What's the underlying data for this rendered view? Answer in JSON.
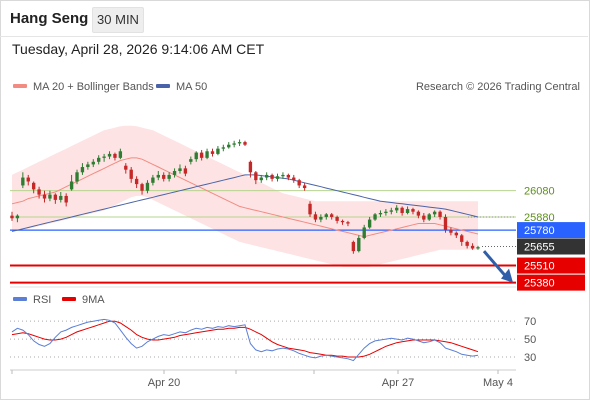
{
  "header": {
    "title": "Hang Seng",
    "timeframe": "30 MIN",
    "datetime": "Tuesday, April 28, 2026 9:14:06 AM CET"
  },
  "legend": {
    "ma20_label": "MA 20 + Bollinger Bands",
    "ma50_label": "MA 50",
    "credit": "Research © 2026 Trading Central",
    "rsi_label": "RSI",
    "rsi_ma_label": "9MA"
  },
  "colors": {
    "bull": "#2e7d32",
    "bear": "#c62828",
    "ma20": "#f28b82",
    "ma50": "#4a63a8",
    "band_fill": "#fde3e3",
    "green_level": "#b6d48e",
    "blue_level": "#2962ff",
    "red_level": "#e60000",
    "current": "#333333",
    "target_arrow": "#2f5fa8",
    "rsi": "#5b7fd6",
    "rsi_ma": "#e60000"
  },
  "chart_data": {
    "type": "candlestick",
    "x_ticks": [
      "Apr 20",
      "Apr 27",
      "May 4"
    ],
    "levels": [
      {
        "value": 26080,
        "label": "26080",
        "style": "green-text"
      },
      {
        "value": 25880,
        "label": "25880",
        "style": "green-text"
      },
      {
        "value": 25780,
        "label": "25780",
        "style": "blue-box"
      },
      {
        "value": 25655,
        "label": "25655",
        "style": "dark-box"
      },
      {
        "value": 25510,
        "label": "25510",
        "style": "red-box"
      },
      {
        "value": 25380,
        "label": "25380",
        "style": "red-box"
      }
    ],
    "ylim": [
      25400,
      26740
    ],
    "candles": [
      [
        25890,
        25870,
        25850,
        25920
      ],
      [
        25870,
        25890,
        25840,
        25900
      ],
      [
        26120,
        26180,
        26100,
        26220
      ],
      [
        26180,
        26150,
        26120,
        26200
      ],
      [
        26140,
        26090,
        26060,
        26150
      ],
      [
        26090,
        26050,
        26020,
        26110
      ],
      [
        26050,
        26020,
        25990,
        26080
      ],
      [
        26020,
        26050,
        26000,
        26080
      ],
      [
        26050,
        26010,
        25980,
        26060
      ],
      [
        26010,
        26040,
        25990,
        26070
      ],
      [
        26040,
        25990,
        25960,
        26060
      ],
      [
        26090,
        26150,
        26080,
        26200
      ],
      [
        26150,
        26220,
        26130,
        26240
      ],
      [
        26220,
        26260,
        26200,
        26290
      ],
      [
        26260,
        26280,
        26240,
        26300
      ],
      [
        26280,
        26300,
        26260,
        26320
      ],
      [
        26300,
        26330,
        26280,
        26350
      ],
      [
        26330,
        26340,
        26300,
        26360
      ],
      [
        26340,
        26360,
        26320,
        26380
      ],
      [
        26360,
        26330,
        26310,
        26370
      ],
      [
        26330,
        26380,
        26320,
        26400
      ],
      [
        26270,
        26240,
        26210,
        26290
      ],
      [
        26240,
        26170,
        26140,
        26260
      ],
      [
        26170,
        26130,
        26100,
        26190
      ],
      [
        26130,
        26080,
        26050,
        26140
      ],
      [
        26080,
        26140,
        26060,
        26160
      ],
      [
        26140,
        26180,
        26120,
        26200
      ],
      [
        26180,
        26200,
        26160,
        26230
      ],
      [
        26200,
        26170,
        26150,
        26220
      ],
      [
        26170,
        26200,
        26150,
        26220
      ],
      [
        26200,
        26230,
        26180,
        26250
      ],
      [
        26230,
        26250,
        26210,
        26280
      ],
      [
        26250,
        26210,
        26190,
        26270
      ],
      [
        26300,
        26320,
        26280,
        26340
      ],
      [
        26320,
        26370,
        26300,
        26380
      ],
      [
        26370,
        26330,
        26310,
        26390
      ],
      [
        26330,
        26380,
        26320,
        26400
      ],
      [
        26380,
        26360,
        26340,
        26400
      ],
      [
        26360,
        26400,
        26350,
        26420
      ],
      [
        26400,
        26410,
        26380,
        26430
      ],
      [
        26410,
        26430,
        26400,
        26450
      ],
      [
        26430,
        26440,
        26410,
        26460
      ],
      [
        26440,
        26450,
        26420,
        26470
      ],
      [
        26450,
        26430,
        26420,
        26460
      ],
      [
        26300,
        26220,
        26180,
        26310
      ],
      [
        26220,
        26160,
        26130,
        26230
      ],
      [
        26160,
        26180,
        26140,
        26200
      ],
      [
        26180,
        26200,
        26160,
        26220
      ],
      [
        26200,
        26170,
        26150,
        26210
      ],
      [
        26170,
        26190,
        26150,
        26210
      ],
      [
        26190,
        26200,
        26170,
        26220
      ],
      [
        26200,
        26180,
        26160,
        26210
      ],
      [
        26180,
        26160,
        26140,
        26200
      ],
      [
        26160,
        26120,
        26100,
        26170
      ],
      [
        26120,
        26100,
        26080,
        26140
      ],
      [
        25980,
        25900,
        25880,
        26000
      ],
      [
        25900,
        25860,
        25840,
        25920
      ],
      [
        25860,
        25880,
        25840,
        25900
      ],
      [
        25880,
        25900,
        25860,
        25910
      ],
      [
        25900,
        25880,
        25860,
        25910
      ],
      [
        25880,
        25850,
        25830,
        25890
      ],
      [
        25850,
        25840,
        25820,
        25860
      ],
      [
        25840,
        25830,
        25810,
        25850
      ],
      [
        25690,
        25620,
        25600,
        25700
      ],
      [
        25620,
        25720,
        25610,
        25740
      ],
      [
        25720,
        25800,
        25710,
        25820
      ],
      [
        25800,
        25860,
        25790,
        25880
      ],
      [
        25860,
        25900,
        25850,
        25910
      ],
      [
        25900,
        25910,
        25880,
        25930
      ],
      [
        25910,
        25920,
        25890,
        25940
      ],
      [
        25920,
        25930,
        25900,
        25950
      ],
      [
        25930,
        25950,
        25910,
        25970
      ],
      [
        25950,
        25910,
        25890,
        25960
      ],
      [
        25910,
        25940,
        25900,
        25960
      ],
      [
        25940,
        25920,
        25900,
        25950
      ],
      [
        25920,
        25890,
        25870,
        25930
      ],
      [
        25890,
        25860,
        25840,
        25910
      ],
      [
        25860,
        25900,
        25850,
        25910
      ],
      [
        25900,
        25920,
        25880,
        25930
      ],
      [
        25920,
        25880,
        25860,
        25930
      ],
      [
        25880,
        25780,
        25760,
        25900
      ],
      [
        25780,
        25760,
        25740,
        25800
      ],
      [
        25760,
        25740,
        25720,
        25770
      ],
      [
        25740,
        25690,
        25660,
        25750
      ],
      [
        25690,
        25660,
        25640,
        25700
      ],
      [
        25660,
        25640,
        25630,
        25680
      ],
      [
        25640,
        25650,
        25630,
        25660
      ]
    ],
    "ma20": [
      25980,
      25990,
      26000,
      26020,
      26030,
      26040,
      26050,
      26060,
      26070,
      26090,
      26110,
      26130,
      26150,
      26170,
      26190,
      26210,
      26230,
      26250,
      26270,
      26290,
      26310,
      26320,
      26330,
      26330,
      26320,
      26300,
      26280,
      26260,
      26240,
      26220,
      26200,
      26180,
      26160,
      26140,
      26120,
      26100,
      26080,
      26060,
      26040,
      26020,
      26000,
      25980,
      25960,
      25950,
      25940,
      25930,
      25920,
      25910,
      25900,
      25890,
      25880,
      25870,
      25860,
      25850,
      25840,
      25830,
      25820,
      25810,
      25800,
      25790,
      25780,
      25770,
      25760,
      25750,
      25740,
      25730,
      25740,
      25750,
      25760,
      25770,
      25780,
      25790,
      25800,
      25810,
      25820,
      25830,
      25830,
      25830,
      25830,
      25820,
      25810,
      25800,
      25790,
      25780,
      25770,
      25760,
      25750
    ],
    "band_upper": [
      26200,
      26220,
      26240,
      26260,
      26280,
      26300,
      26320,
      26340,
      26360,
      26380,
      26400,
      26420,
      26440,
      26460,
      26480,
      26500,
      26520,
      26540,
      26550,
      26560,
      26570,
      26575,
      26575,
      26570,
      26560,
      26550,
      26540,
      26520,
      26500,
      26480,
      26460,
      26440,
      26420,
      26400,
      26380,
      26360,
      26340,
      26320,
      26300,
      26280,
      26260,
      26240,
      26220,
      26200,
      26180,
      26160,
      26140,
      26120,
      26100,
      26080,
      26060,
      26050,
      26040,
      26030,
      26020,
      26010,
      26000,
      26000,
      26000,
      26000,
      26000,
      26000,
      26000,
      26000,
      26000,
      26000,
      26000,
      26000,
      26000,
      26000,
      26000,
      26000,
      26000,
      26000,
      26000,
      26000,
      26000,
      26000,
      26000,
      26000,
      26000,
      26000,
      26000,
      26000,
      26000,
      26000,
      26000
    ],
    "band_lower": [
      25780,
      25780,
      25780,
      25790,
      25800,
      25810,
      25820,
      25830,
      25840,
      25850,
      25860,
      25870,
      25880,
      25890,
      25900,
      25910,
      25920,
      25930,
      25950,
      25970,
      25990,
      26010,
      26030,
      26040,
      26040,
      26030,
      26010,
      25990,
      25970,
      25950,
      25930,
      25910,
      25890,
      25870,
      25850,
      25830,
      25810,
      25790,
      25770,
      25750,
      25730,
      25710,
      25690,
      25680,
      25670,
      25660,
      25650,
      25640,
      25630,
      25620,
      25610,
      25600,
      25590,
      25580,
      25570,
      25560,
      25550,
      25540,
      25530,
      25520,
      25510,
      25500,
      25500,
      25500,
      25500,
      25500,
      25500,
      25510,
      25520,
      25530,
      25540,
      25550,
      25560,
      25570,
      25580,
      25590,
      25600,
      25610,
      25620,
      25630,
      25630,
      25630,
      25630,
      25630,
      25630,
      25630,
      25630
    ],
    "ma50": [
      25770,
      25780,
      25790,
      25800,
      25810,
      25820,
      25830,
      25840,
      25850,
      25860,
      25870,
      25880,
      25890,
      25900,
      25910,
      25920,
      25930,
      25940,
      25950,
      25960,
      25970,
      25980,
      25990,
      26000,
      26010,
      26020,
      26030,
      26040,
      26050,
      26060,
      26070,
      26080,
      26090,
      26100,
      26110,
      26120,
      26130,
      26140,
      26150,
      26160,
      26170,
      26180,
      26190,
      26200,
      26200,
      26200,
      26195,
      26190,
      26185,
      26180,
      26175,
      26170,
      26160,
      26150,
      26140,
      26130,
      26120,
      26110,
      26100,
      26090,
      26080,
      26070,
      26060,
      26050,
      26040,
      26030,
      26020,
      26010,
      26000,
      25995,
      25990,
      25985,
      25980,
      25975,
      25970,
      25965,
      25960,
      25955,
      25950,
      25945,
      25940,
      25930,
      25920,
      25910,
      25900,
      25890,
      25880
    ],
    "rsi": {
      "ticks": [
        70,
        50,
        30
      ],
      "ylim": [
        20,
        78
      ],
      "rsi": [
        58,
        62,
        60,
        55,
        48,
        44,
        42,
        45,
        52,
        58,
        60,
        63,
        65,
        67,
        69,
        70,
        71,
        72,
        71,
        68,
        60,
        52,
        45,
        40,
        42,
        47,
        50,
        53,
        55,
        54,
        56,
        58,
        57,
        60,
        62,
        61,
        63,
        62,
        64,
        63,
        65,
        64,
        65,
        66,
        45,
        38,
        36,
        38,
        37,
        39,
        40,
        39,
        37,
        34,
        32,
        30,
        29,
        31,
        32,
        31,
        30,
        29,
        28,
        26,
        33,
        40,
        45,
        48,
        49,
        50,
        51,
        50,
        49,
        51,
        50,
        48,
        46,
        47,
        49,
        46,
        40,
        38,
        36,
        33,
        32,
        31,
        32
      ],
      "ma": [
        55,
        56,
        57,
        56,
        54,
        52,
        50,
        49,
        49,
        50,
        52,
        55,
        58,
        60,
        62,
        64,
        66,
        68,
        70,
        70,
        68,
        64,
        60,
        55,
        52,
        50,
        49,
        49,
        50,
        51,
        52,
        54,
        55,
        56,
        57,
        58,
        59,
        60,
        61,
        61,
        62,
        62,
        63,
        63,
        61,
        58,
        55,
        51,
        47,
        44,
        42,
        40,
        39,
        38,
        37,
        35,
        34,
        33,
        32,
        32,
        31,
        31,
        30,
        30,
        30,
        31,
        33,
        36,
        39,
        42,
        44,
        46,
        47,
        48,
        49,
        49,
        49,
        49,
        49,
        48,
        47,
        46,
        44,
        42,
        40,
        38,
        36
      ]
    }
  }
}
